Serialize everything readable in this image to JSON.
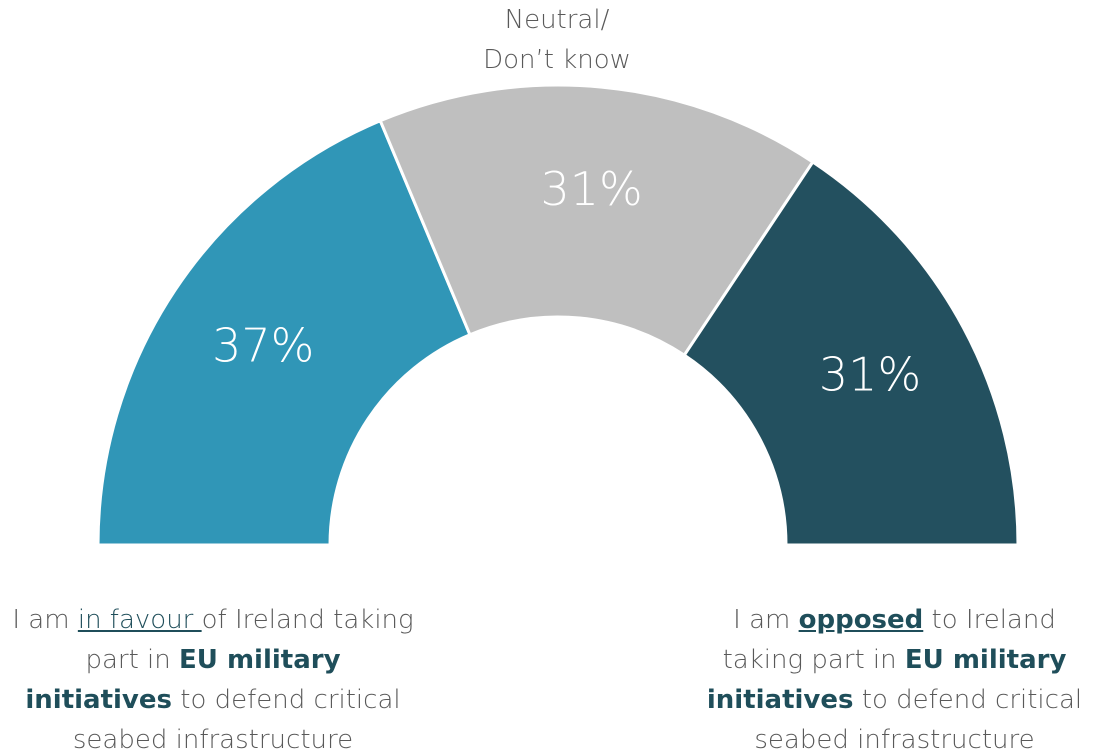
{
  "chart_data": {
    "type": "half_donut",
    "values": [
      37,
      31,
      31
    ],
    "value_labels": [
      "37%",
      "31%",
      "31%"
    ],
    "colors": [
      "#3096b7",
      "#bfbfbf",
      "#23505f"
    ],
    "segment_labels": [
      [
        {
          "text": "I am "
        },
        {
          "text": "in favour ",
          "style": "underline"
        },
        {
          "text": "of Ireland taking part in "
        },
        {
          "text": "EU military initiatives",
          "style": "bold"
        },
        {
          "text": " to defend critical seabed infrastructure"
        }
      ],
      [
        {
          "text": "Neutral/"
        },
        {
          "text": "Don’t know",
          "style": "newline"
        }
      ],
      [
        {
          "text": "I am "
        },
        {
          "text": "opposed",
          "style": "bold-underline"
        },
        {
          "text": " to Ireland taking part in "
        },
        {
          "text": "EU military initiatives",
          "style": "bold"
        },
        {
          "text": " to defend critical seabed infrastructure"
        }
      ]
    ]
  }
}
